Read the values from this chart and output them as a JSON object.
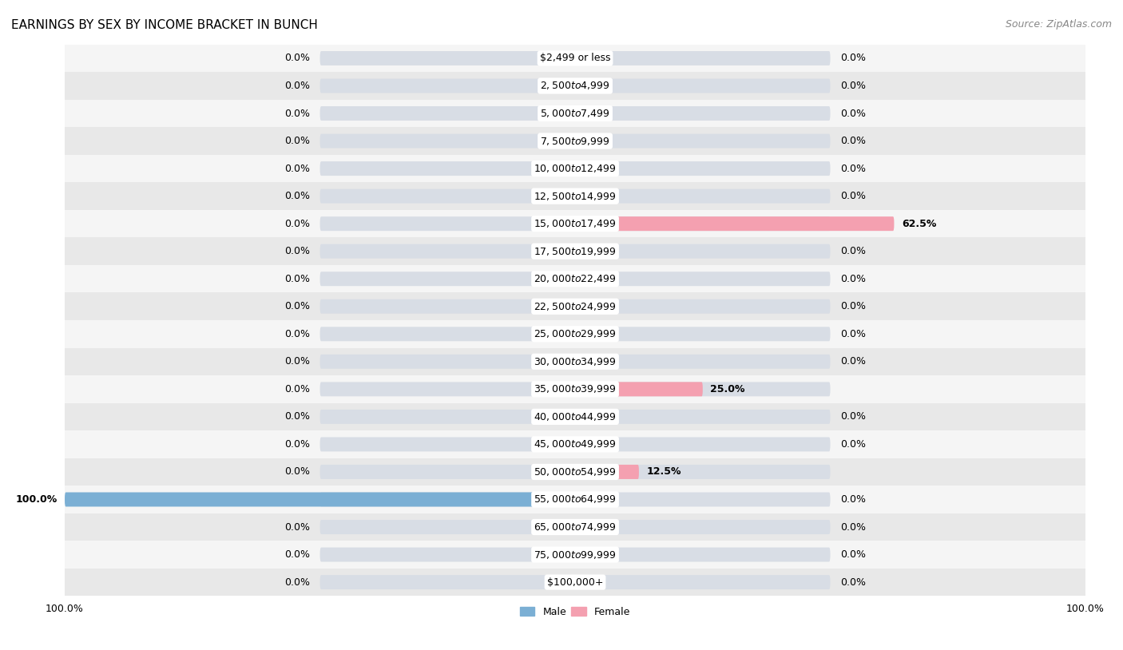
{
  "title": "EARNINGS BY SEX BY INCOME BRACKET IN BUNCH",
  "source": "Source: ZipAtlas.com",
  "categories": [
    "$2,499 or less",
    "$2,500 to $4,999",
    "$5,000 to $7,499",
    "$7,500 to $9,999",
    "$10,000 to $12,499",
    "$12,500 to $14,999",
    "$15,000 to $17,499",
    "$17,500 to $19,999",
    "$20,000 to $22,499",
    "$22,500 to $24,999",
    "$25,000 to $29,999",
    "$30,000 to $34,999",
    "$35,000 to $39,999",
    "$40,000 to $44,999",
    "$45,000 to $49,999",
    "$50,000 to $54,999",
    "$55,000 to $64,999",
    "$65,000 to $74,999",
    "$75,000 to $99,999",
    "$100,000+"
  ],
  "male_values": [
    0.0,
    0.0,
    0.0,
    0.0,
    0.0,
    0.0,
    0.0,
    0.0,
    0.0,
    0.0,
    0.0,
    0.0,
    0.0,
    0.0,
    0.0,
    0.0,
    100.0,
    0.0,
    0.0,
    0.0
  ],
  "female_values": [
    0.0,
    0.0,
    0.0,
    0.0,
    0.0,
    0.0,
    62.5,
    0.0,
    0.0,
    0.0,
    0.0,
    0.0,
    25.0,
    0.0,
    0.0,
    12.5,
    0.0,
    0.0,
    0.0,
    0.0
  ],
  "male_color": "#7BAFD4",
  "female_color": "#F4A0B0",
  "male_label": "Male",
  "female_label": "Female",
  "bar_height": 0.52,
  "bg_bar_height": 0.52,
  "xlim_left": -100,
  "xlim_right": 100,
  "row_light_color": "#f5f5f5",
  "row_dark_color": "#e8e8e8",
  "bg_bar_color": "#dde3ea",
  "title_fontsize": 11,
  "source_fontsize": 9,
  "label_fontsize": 9,
  "tick_fontsize": 9,
  "cat_label_fontsize": 9
}
